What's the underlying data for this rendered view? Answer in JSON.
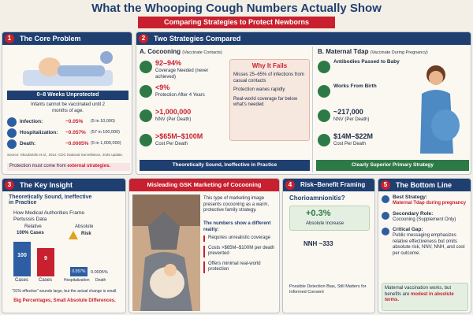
{
  "title": "What the Whooping Cough Numbers Actually Show",
  "subtitle": "Comparing Strategies to Protect Newborns",
  "p1": {
    "num": "1",
    "title": "The Core Problem",
    "banner": "0–8 Weeks Unprotected",
    "text": "Infants cannot be vaccinated until 2 months of age.",
    "rows": [
      {
        "label": "Infection:",
        "value": "~0.05%",
        "detail": "(5 in 10,000)"
      },
      {
        "label": "Hospitalization:",
        "value": "~0.057%",
        "detail": "(57 in 100,000)"
      },
      {
        "label": "Death:",
        "value": "~0.0005%",
        "detail": "(5 in 1,000,000)"
      }
    ],
    "source": "Source: Skoufaridis et al., 2012; CDC National Surveillance, 2026 update.",
    "note": "Protection must come from",
    "note_em": "external strategies."
  },
  "p2": {
    "num": "2",
    "title": "Two Strategies Compared",
    "a": {
      "title": "A. Cocooning",
      "sub": "(Vaccinate Contacts)",
      "items": [
        {
          "big": "92–94%",
          "small": "Coverage Needed (never achieved)"
        },
        {
          "big": "<9%",
          "small": "Protection After 4 Years"
        },
        {
          "big": ">1,000,000",
          "small": "NNV (Per Death)"
        },
        {
          "big": ">$65M–$100M",
          "small": "Cost Per Death"
        }
      ],
      "why_title": "Why It Fails",
      "why": [
        "Misses 25–65% of infections from casual contacts",
        "Protection wanes rapidly",
        "Real-world coverage far below what's needed"
      ],
      "footer": "Theoretically Sound, Ineffective in Practice"
    },
    "b": {
      "title": "B. Maternal Tdap",
      "sub": "(Vaccinate During Pregnancy)",
      "items": [
        {
          "big": "Antibodies Passed to Baby",
          "small": ""
        },
        {
          "big": "Works From Birth",
          "small": ""
        },
        {
          "big": "~217,000",
          "small": "NNV (Per Death)"
        },
        {
          "big": "$14M–$22M",
          "small": "Cost Per Death"
        }
      ],
      "footer": "Clearly Superior Primary Strategy"
    }
  },
  "p3": {
    "num": "3",
    "title": "The Key Insight",
    "sub": "Theoretically Sound, Ineffective in Practice",
    "frame": "How Medical Authorities Frame Pertussis Data",
    "relative": "Relative",
    "rel_head": "100% Cases",
    "bars": [
      "100",
      "9"
    ],
    "bar_labels": [
      "Cases",
      "Cases"
    ],
    "absolute": "Absolute",
    "risk": "Risk",
    "abs_bars": [
      "0.057%",
      "0.0005%"
    ],
    "abs_labels": [
      "Hospitalization",
      "Death"
    ],
    "quote": "“91% effective” sounds large, but the actual change is small.",
    "bold": "Big Percentages, Small Absolute Differences."
  },
  "gsk": {
    "title": "Misleading GSK Marketing of Cocooning",
    "text": "This type of marketing image presents cocooning as a warm, protective family strategy.",
    "lead": "The numbers show a different reality:",
    "bullets": [
      "Requires unrealistic coverage",
      "Costs >$65M–$100M per death prevented",
      "Offers minimal real-world protection"
    ]
  },
  "p4": {
    "num": "4",
    "title": "Risk–Benefit Framing",
    "q": "Chorioamnionitis?",
    "big": "+0.3%",
    "small": "Absolute Increase",
    "nnh": "NNH ~333",
    "bottom": "Possible Detection Bias, Still Matters for Informed Consent"
  },
  "p5": {
    "num": "5",
    "title": "The Bottom Line",
    "items": [
      {
        "label": "Best Strategy:",
        "text": "Maternal Tdap during pregnancy"
      },
      {
        "label": "Secondary Role:",
        "text": "Cocooning (Supplement Only)"
      },
      {
        "label": "Critical Gap:",
        "text": "Public messaging emphasizes relative effectiveness but omits absolute risk, NNV, NNH, and cost per outcome."
      }
    ],
    "box": "Maternal vaccination works, but benefits are",
    "box_em": "modest in absolute terms."
  }
}
